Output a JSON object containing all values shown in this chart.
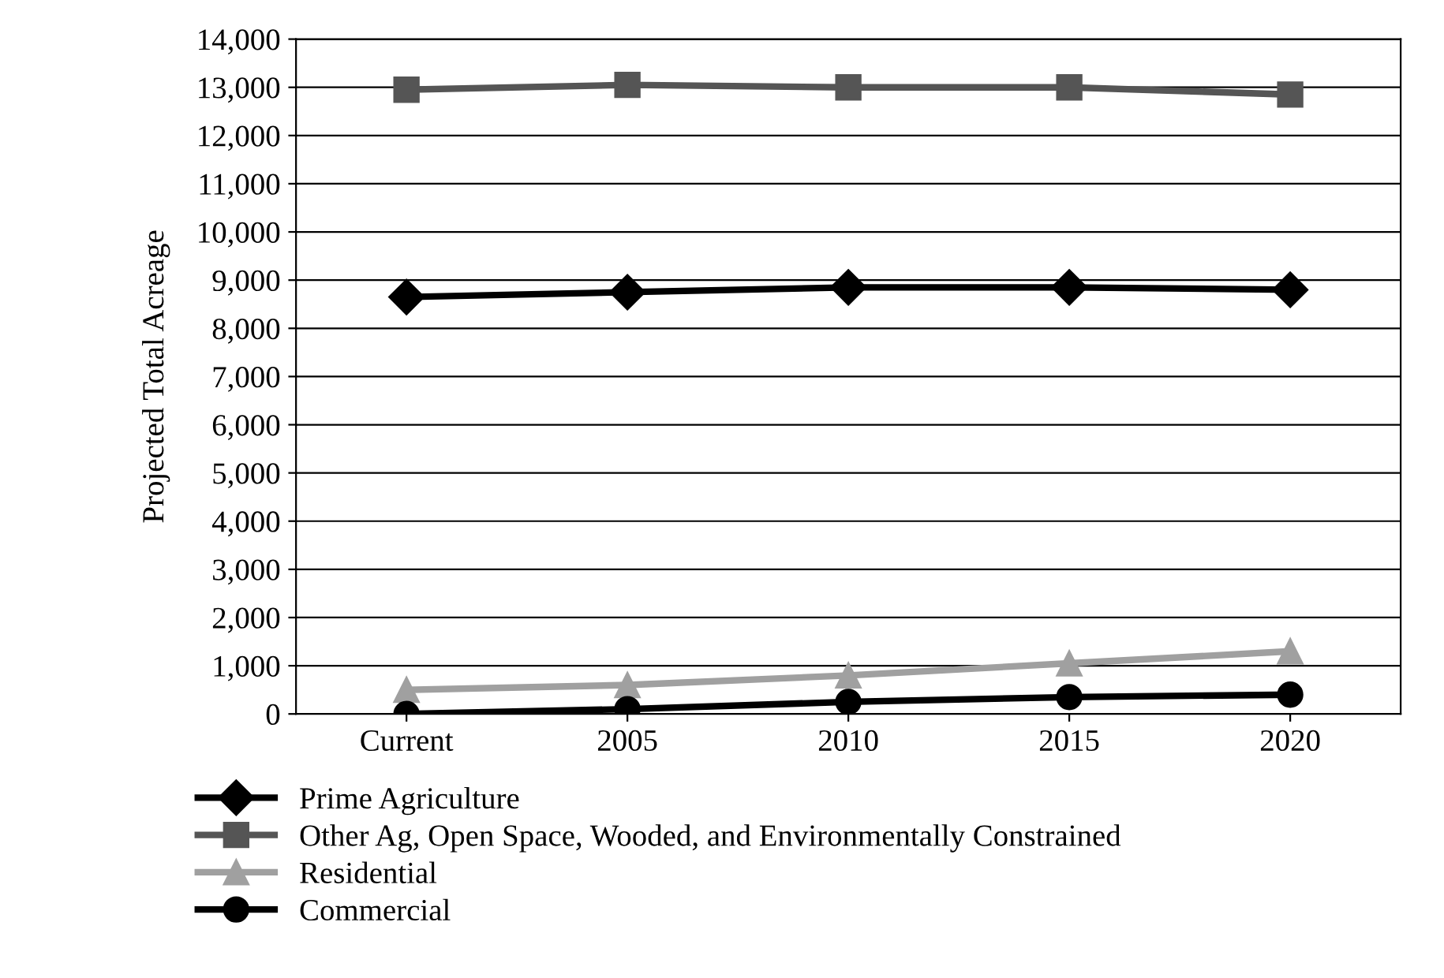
{
  "chart_data": {
    "type": "line",
    "ylabel": "Projected Total Acreage",
    "categories": [
      "Current",
      "2005",
      "2010",
      "2015",
      "2020"
    ],
    "series": [
      {
        "name": "Prime Agriculture",
        "color": "#000000",
        "marker": "diamond",
        "values": [
          8650,
          8750,
          8850,
          8850,
          8800
        ]
      },
      {
        "name": "Other Ag, Open Space, Wooded, and Environmentally Constrained",
        "color": "#555555",
        "marker": "square",
        "values": [
          12950,
          13050,
          13000,
          13000,
          12850
        ]
      },
      {
        "name": "Residential",
        "color": "#a0a0a0",
        "marker": "triangle",
        "values": [
          500,
          600,
          800,
          1050,
          1300
        ]
      },
      {
        "name": "Commercial",
        "color": "#000000",
        "marker": "circle",
        "values": [
          0,
          100,
          250,
          350,
          400
        ]
      }
    ],
    "ylim": [
      0,
      14000
    ],
    "yticks": [
      {
        "value": 0,
        "label": "0"
      },
      {
        "value": 1000,
        "label": "1,000"
      },
      {
        "value": 2000,
        "label": "2,000"
      },
      {
        "value": 3000,
        "label": "3,000"
      },
      {
        "value": 4000,
        "label": "4,000"
      },
      {
        "value": 5000,
        "label": "5,000"
      },
      {
        "value": 6000,
        "label": "6,000"
      },
      {
        "value": 7000,
        "label": "7,000"
      },
      {
        "value": 8000,
        "label": "8,000"
      },
      {
        "value": 9000,
        "label": "9,000"
      },
      {
        "value": 10000,
        "label": "10,000"
      },
      {
        "value": 11000,
        "label": "11,000"
      },
      {
        "value": 12000,
        "label": "12,000"
      },
      {
        "value": 13000,
        "label": "13,000"
      },
      {
        "value": 14000,
        "label": "14,000"
      }
    ],
    "grid": "y",
    "legend": "bottom left"
  }
}
